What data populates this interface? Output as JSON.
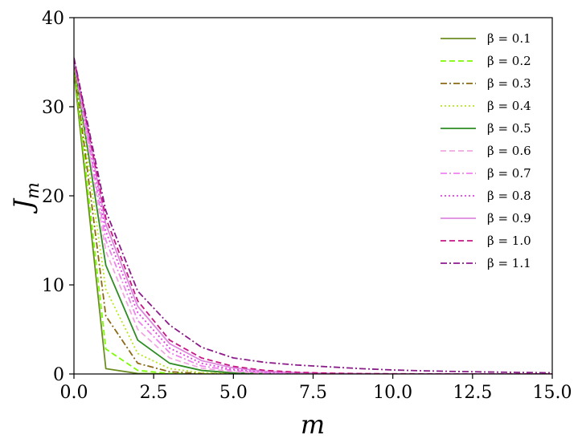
{
  "chart_data": {
    "type": "line",
    "xlabel": "m",
    "ylabel": "J",
    "ylabel_sub": "m",
    "xlim": [
      0,
      15
    ],
    "ylim": [
      0,
      40
    ],
    "xticks": [
      0,
      2.5,
      5,
      7.5,
      10,
      12.5,
      15
    ],
    "xtick_labels": [
      "0.0",
      "2.5",
      "5.0",
      "7.5",
      "10.0",
      "12.5",
      "15.0"
    ],
    "yticks": [
      0,
      10,
      20,
      30,
      40
    ],
    "ytick_labels": [
      "0",
      "10",
      "20",
      "30",
      "40"
    ],
    "grid": false,
    "legend_position": "top-right",
    "x": [
      0,
      1,
      2,
      3,
      4,
      5,
      6,
      7,
      8,
      9,
      10,
      11,
      12,
      13,
      14,
      15
    ],
    "series": [
      {
        "name": "β = 0.1",
        "color": "#6b8e23",
        "dash": "solid",
        "values": [
          34.0,
          0.6,
          0.05,
          0.01,
          0,
          0,
          0,
          0,
          0,
          0,
          0,
          0,
          0,
          0,
          0,
          0
        ]
      },
      {
        "name": "β = 0.2",
        "color": "#7cfc00",
        "dash": "dashed",
        "values": [
          34.5,
          2.8,
          0.4,
          0.06,
          0.01,
          0,
          0,
          0,
          0,
          0,
          0,
          0,
          0,
          0,
          0,
          0
        ]
      },
      {
        "name": "β = 0.3",
        "color": "#8b6914",
        "dash": "dashdot",
        "values": [
          34.8,
          6.5,
          1.2,
          0.25,
          0.05,
          0.01,
          0,
          0,
          0,
          0,
          0,
          0,
          0,
          0,
          0,
          0
        ]
      },
      {
        "name": "β = 0.4",
        "color": "#b5e61d",
        "dash": "dotted",
        "values": [
          35.0,
          9.5,
          2.3,
          0.6,
          0.15,
          0.04,
          0.01,
          0,
          0,
          0,
          0,
          0,
          0,
          0,
          0,
          0
        ]
      },
      {
        "name": "β = 0.5",
        "color": "#2e8b22",
        "dash": "solid",
        "values": [
          35.1,
          12.2,
          3.8,
          1.2,
          0.4,
          0.12,
          0.04,
          0.01,
          0,
          0,
          0,
          0,
          0,
          0,
          0,
          0
        ]
      },
      {
        "name": "β = 0.6",
        "color": "#f0a8e0",
        "dash": "dashed",
        "values": [
          35.2,
          13.8,
          5.0,
          1.8,
          0.65,
          0.25,
          0.09,
          0.03,
          0.01,
          0,
          0,
          0,
          0,
          0,
          0,
          0
        ]
      },
      {
        "name": "β = 0.7",
        "color": "#ee82ee",
        "dash": "dashdot",
        "values": [
          35.2,
          15.0,
          6.0,
          2.4,
          0.9,
          0.38,
          0.15,
          0.06,
          0.02,
          0.01,
          0,
          0,
          0,
          0,
          0,
          0
        ]
      },
      {
        "name": "β = 0.8",
        "color": "#e040e0",
        "dash": "dotted",
        "values": [
          35.3,
          16.0,
          6.9,
          2.9,
          1.2,
          0.5,
          0.22,
          0.09,
          0.04,
          0.02,
          0.01,
          0,
          0,
          0,
          0,
          0
        ]
      },
      {
        "name": "β = 0.9",
        "color": "#dd88dd",
        "dash": "solid",
        "values": [
          35.3,
          16.8,
          7.6,
          3.4,
          1.5,
          0.68,
          0.3,
          0.14,
          0.06,
          0.03,
          0.01,
          0,
          0,
          0,
          0,
          0
        ]
      },
      {
        "name": "β = 1.0",
        "color": "#c71585",
        "dash": "dashed",
        "values": [
          35.4,
          17.5,
          8.2,
          3.8,
          1.8,
          0.85,
          0.4,
          0.19,
          0.09,
          0.04,
          0.02,
          0.01,
          0,
          0,
          0,
          0
        ]
      },
      {
        "name": "β = 1.1",
        "color": "#8b1a8b",
        "dash": "dashdot",
        "values": [
          35.5,
          18.3,
          9.3,
          5.5,
          3.0,
          1.8,
          1.3,
          1.0,
          0.8,
          0.6,
          0.45,
          0.35,
          0.28,
          0.22,
          0.17,
          0.13
        ]
      }
    ]
  }
}
